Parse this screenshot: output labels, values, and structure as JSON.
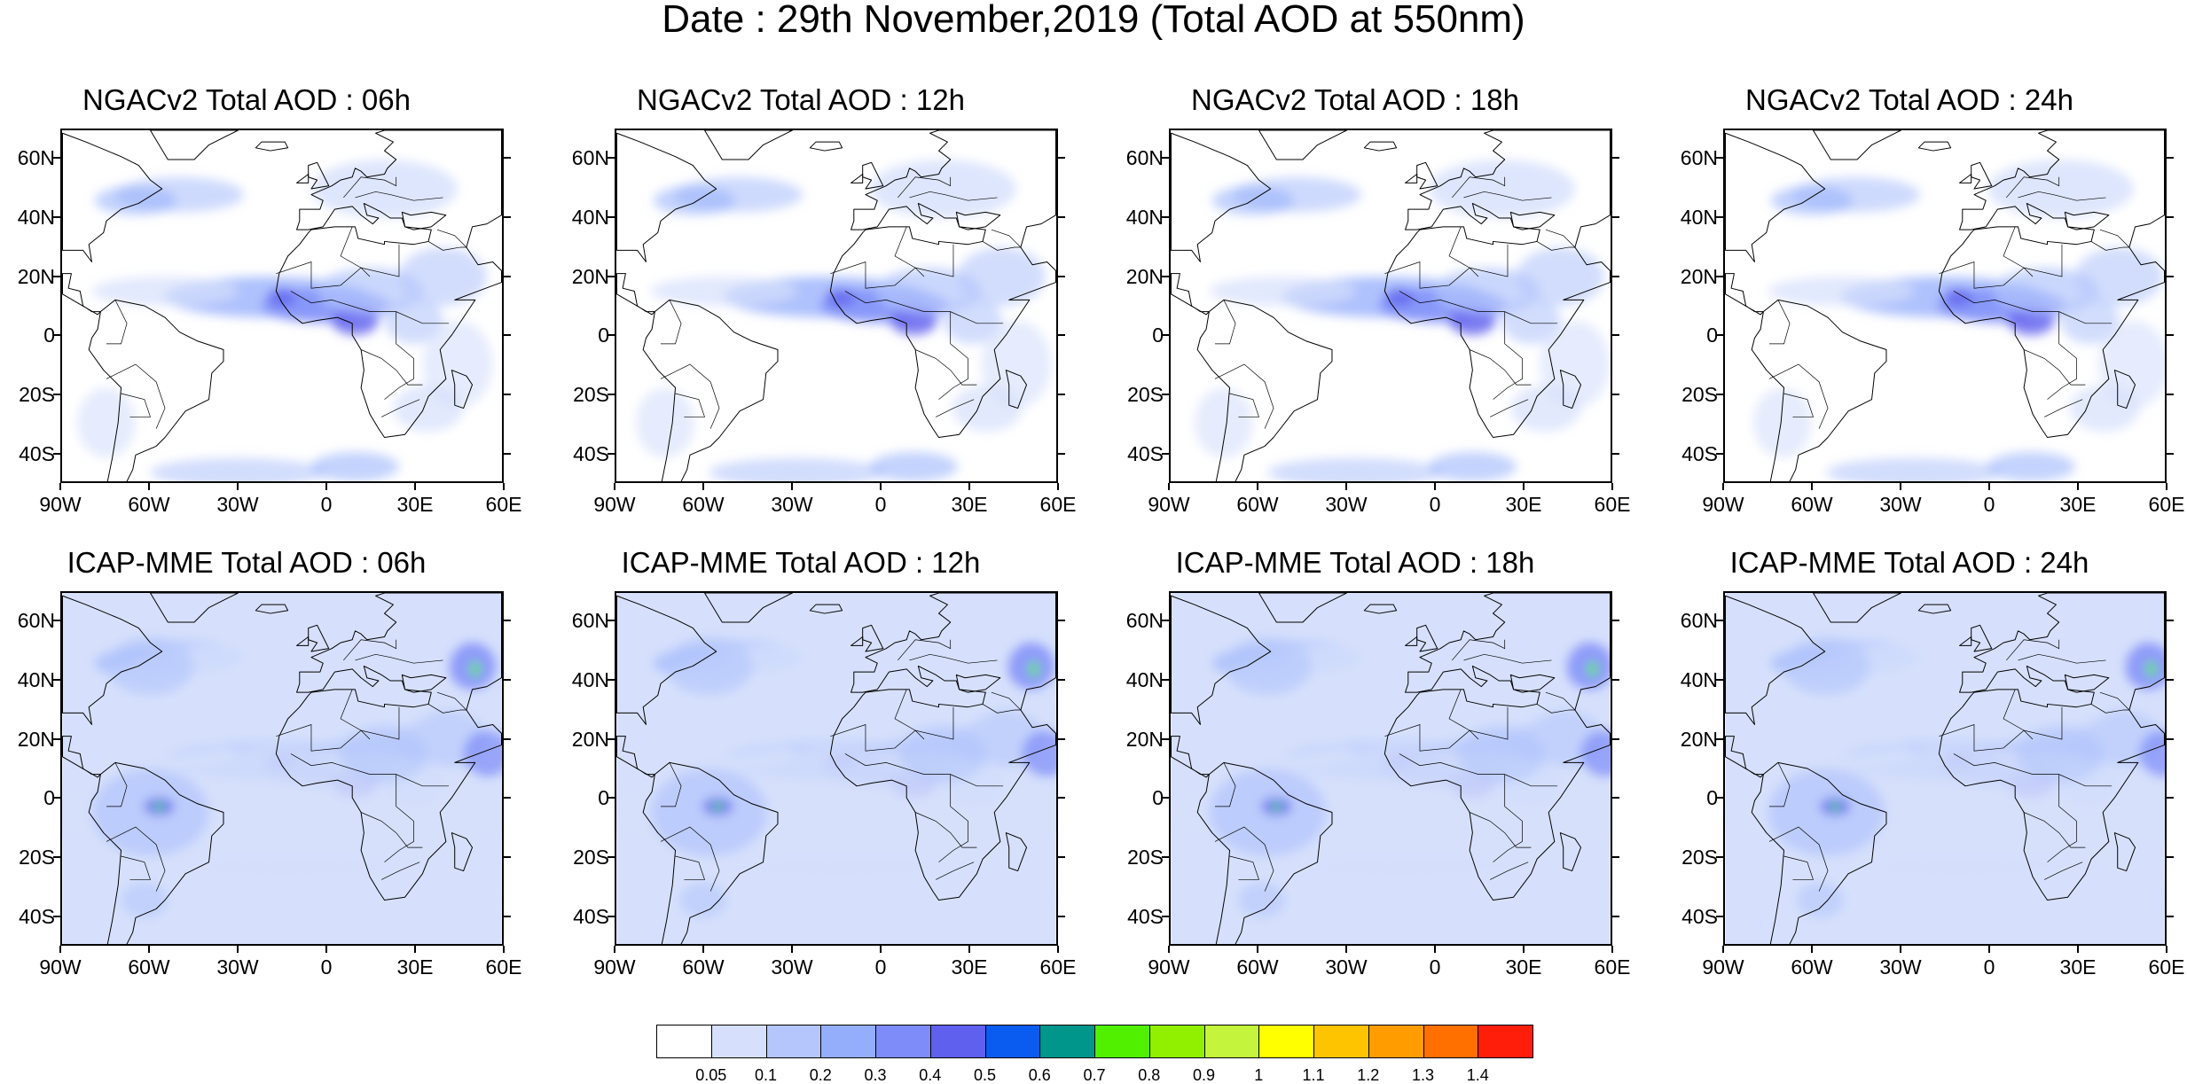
{
  "title": "Date : 29th November,2019 (Total AOD at 550nm)",
  "map": {
    "lon_range": [
      -90,
      60
    ],
    "lat_range": [
      -50,
      70
    ],
    "lat_ticks": [
      {
        "value": 60,
        "label": "60N"
      },
      {
        "value": 40,
        "label": "40N"
      },
      {
        "value": 20,
        "label": "20N"
      },
      {
        "value": 0,
        "label": "0"
      },
      {
        "value": -20,
        "label": "20S"
      },
      {
        "value": -40,
        "label": "40S"
      }
    ],
    "lon_ticks": [
      {
        "value": -90,
        "label": "90W"
      },
      {
        "value": -60,
        "label": "60W"
      },
      {
        "value": -30,
        "label": "30W"
      },
      {
        "value": 0,
        "label": "0"
      },
      {
        "value": 30,
        "label": "30E"
      },
      {
        "value": 60,
        "label": "60E"
      }
    ]
  },
  "panels": [
    {
      "title": "NGACv2 Total AOD : 06h",
      "model": "NGACv2",
      "hour": "06h"
    },
    {
      "title": "NGACv2 Total AOD : 12h",
      "model": "NGACv2",
      "hour": "12h"
    },
    {
      "title": "NGACv2 Total AOD : 18h",
      "model": "NGACv2",
      "hour": "18h"
    },
    {
      "title": "NGACv2 Total AOD : 24h",
      "model": "NGACv2",
      "hour": "24h"
    },
    {
      "title": "ICAP-MME Total AOD : 06h",
      "model": "ICAP-MME",
      "hour": "06h"
    },
    {
      "title": "ICAP-MME Total AOD : 12h",
      "model": "ICAP-MME",
      "hour": "12h"
    },
    {
      "title": "ICAP-MME Total AOD : 18h",
      "model": "ICAP-MME",
      "hour": "18h"
    },
    {
      "title": "ICAP-MME Total AOD : 24h",
      "model": "ICAP-MME",
      "hour": "24h"
    }
  ],
  "colorbar": {
    "labels": [
      "0.05",
      "0.1",
      "0.2",
      "0.3",
      "0.4",
      "0.5",
      "0.6",
      "0.7",
      "0.8",
      "0.9",
      "1",
      "1.1",
      "1.2",
      "1.3",
      "1.4"
    ],
    "colors": [
      "#ffffff",
      "#d6e0fc",
      "#b4c6fc",
      "#94aefc",
      "#7d8cf8",
      "#6060ee",
      "#0a5cf0",
      "#00968c",
      "#50f000",
      "#90f000",
      "#c4f43c",
      "#ffff00",
      "#ffc400",
      "#ff9c00",
      "#ff7000",
      "#ff1e0a"
    ]
  }
}
